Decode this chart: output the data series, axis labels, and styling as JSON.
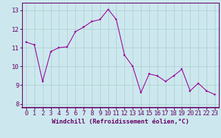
{
  "x": [
    0,
    1,
    2,
    3,
    4,
    5,
    6,
    7,
    8,
    9,
    10,
    11,
    12,
    13,
    14,
    15,
    16,
    17,
    18,
    19,
    20,
    21,
    22,
    23
  ],
  "y": [
    11.3,
    11.15,
    9.2,
    10.8,
    11.0,
    11.05,
    11.85,
    12.1,
    12.4,
    12.5,
    13.05,
    12.5,
    10.6,
    10.0,
    8.6,
    9.6,
    9.5,
    9.2,
    9.5,
    9.85,
    8.7,
    9.1,
    8.7,
    8.5
  ],
  "line_color": "#990099",
  "marker_color": "#990099",
  "bg_color": "#cce8ee",
  "grid_color": "#aacccc",
  "xlabel": "Windchill (Refroidissement éolien,°C)",
  "xlabel_fontsize": 6.5,
  "xtick_labels": [
    "0",
    "1",
    "2",
    "3",
    "4",
    "5",
    "6",
    "7",
    "8",
    "9",
    "10",
    "11",
    "12",
    "13",
    "14",
    "15",
    "16",
    "17",
    "18",
    "19",
    "20",
    "21",
    "22",
    "23"
  ],
  "ylim": [
    7.8,
    13.4
  ],
  "xlim": [
    -0.5,
    23.5
  ],
  "yticks": [
    8,
    9,
    10,
    11,
    12,
    13
  ],
  "ytick_labels": [
    "8",
    "9",
    "10",
    "11",
    "12",
    "13"
  ],
  "tick_fontsize": 6.5,
  "axis_color": "#660066",
  "spine_color": "#660066"
}
